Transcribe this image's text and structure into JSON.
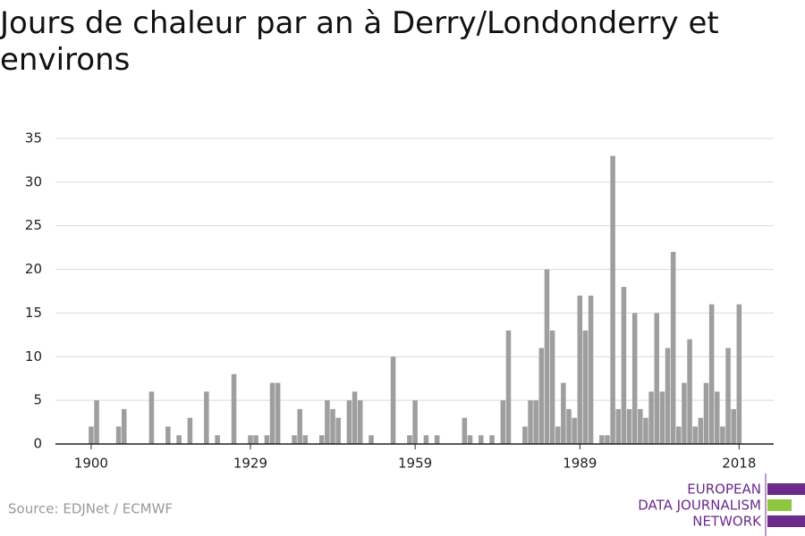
{
  "chart_data": {
    "type": "bar",
    "title": "Jours de chaleur par an à Derry/Londonderry et environs",
    "source": "Source: EDJNet / ECMWF",
    "logo": [
      "EUROPEAN",
      "DATA JOURNALISM",
      "NETWORK"
    ],
    "color": "#9e9e9e",
    "grid": true,
    "x": [
      1900,
      1901,
      1902,
      1903,
      1904,
      1905,
      1906,
      1907,
      1908,
      1909,
      1910,
      1911,
      1912,
      1913,
      1914,
      1915,
      1916,
      1917,
      1918,
      1919,
      1920,
      1921,
      1922,
      1923,
      1924,
      1925,
      1926,
      1927,
      1928,
      1929,
      1930,
      1931,
      1932,
      1933,
      1934,
      1935,
      1936,
      1937,
      1938,
      1939,
      1940,
      1941,
      1942,
      1943,
      1944,
      1945,
      1946,
      1947,
      1948,
      1949,
      1950,
      1951,
      1952,
      1953,
      1954,
      1955,
      1956,
      1957,
      1958,
      1959,
      1960,
      1961,
      1962,
      1963,
      1964,
      1965,
      1966,
      1967,
      1968,
      1969,
      1970,
      1971,
      1972,
      1973,
      1974,
      1975,
      1976,
      1977,
      1978,
      1979,
      1980,
      1981,
      1982,
      1983,
      1984,
      1985,
      1986,
      1987,
      1988,
      1989,
      1990,
      1991,
      1992,
      1993,
      1994,
      1995,
      1996,
      1997,
      1998,
      1999,
      2000,
      2001,
      2002,
      2003,
      2004,
      2005,
      2006,
      2007,
      2008,
      2009,
      2010,
      2011,
      2012,
      2013,
      2014,
      2015,
      2016,
      2017,
      2018
    ],
    "values": [
      2,
      5,
      0,
      0,
      0,
      2,
      4,
      0,
      0,
      0,
      0,
      6,
      0,
      0,
      2,
      0,
      1,
      0,
      3,
      0,
      0,
      6,
      0,
      1,
      0,
      0,
      8,
      0,
      0,
      1,
      1,
      0,
      1,
      7,
      7,
      0,
      0,
      1,
      4,
      1,
      0,
      0,
      1,
      5,
      4,
      3,
      0,
      5,
      6,
      5,
      0,
      1,
      0,
      0,
      0,
      10,
      0,
      0,
      1,
      5,
      0,
      1,
      0,
      1,
      0,
      0,
      0,
      0,
      3,
      1,
      0,
      1,
      0,
      1,
      0,
      5,
      13,
      0,
      0,
      2,
      5,
      5,
      11,
      20,
      13,
      2,
      7,
      4,
      3,
      17,
      13,
      17,
      0,
      1,
      1,
      33,
      4,
      18,
      4,
      15,
      4,
      3,
      6,
      15,
      6,
      11,
      22,
      2,
      7,
      12,
      2,
      3,
      7,
      16,
      6,
      2,
      11,
      4,
      16
    ],
    "xlim": [
      1893.5,
      2024.3
    ],
    "xticks": [
      1900,
      1929,
      1959,
      1989,
      2018
    ],
    "ylim": [
      0,
      35
    ],
    "yticks": [
      0,
      5,
      10,
      15,
      20,
      25,
      30,
      35
    ]
  }
}
